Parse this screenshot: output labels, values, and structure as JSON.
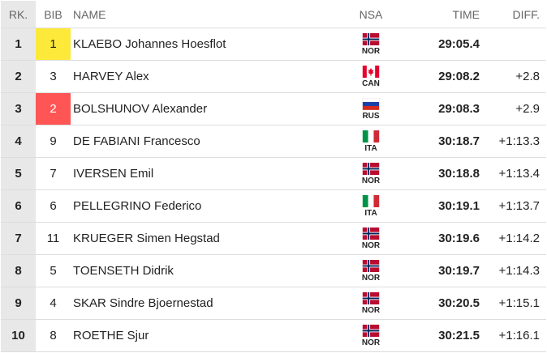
{
  "header": {
    "rank": "RK.",
    "bib": "BIB",
    "name": "NAME",
    "nsa": "NSA",
    "time": "TIME",
    "diff": "DIFF."
  },
  "rows": [
    {
      "rank": 1,
      "bib": 1,
      "name": "KLAEBO Johannes Hoesflot",
      "nsa": "NOR",
      "time": "29:05.4"
    },
    {
      "rank": 2,
      "bib": 3,
      "name": "HARVEY Alex",
      "nsa": "CAN",
      "time": "29:08.2",
      "diff": "+2.8"
    },
    {
      "rank": 3,
      "bib": 2,
      "name": "BOLSHUNOV Alexander",
      "nsa": "RUS",
      "time": "29:08.3",
      "diff": "+2.9"
    },
    {
      "rank": 4,
      "bib": 9,
      "name": "DE FABIANI Francesco",
      "nsa": "ITA",
      "time": "30:18.7",
      "diff": "+1:13.3"
    },
    {
      "rank": 5,
      "bib": 7,
      "name": "IVERSEN Emil",
      "nsa": "NOR",
      "time": "30:18.8",
      "diff": "+1:13.4"
    },
    {
      "rank": 6,
      "bib": 6,
      "name": "PELLEGRINO Federico",
      "nsa": "ITA",
      "time": "30:19.1",
      "diff": "+1:13.7"
    },
    {
      "rank": 7,
      "bib": 11,
      "name": "KRUEGER Simen Hegstad",
      "nsa": "NOR",
      "time": "30:19.6",
      "diff": "+1:14.2"
    },
    {
      "rank": 8,
      "bib": 5,
      "name": "TOENSETH Didrik",
      "nsa": "NOR",
      "time": "30:19.7",
      "diff": "+1:14.3"
    },
    {
      "rank": 9,
      "bib": 4,
      "name": "SKAR Sindre Bjoernestad",
      "nsa": "NOR",
      "time": "30:20.5",
      "diff": "+1:15.1"
    },
    {
      "rank": 10,
      "bib": 8,
      "name": "ROETHE Sjur",
      "nsa": "NOR",
      "time": "30:21.5",
      "diff": "+1:16.1"
    }
  ]
}
